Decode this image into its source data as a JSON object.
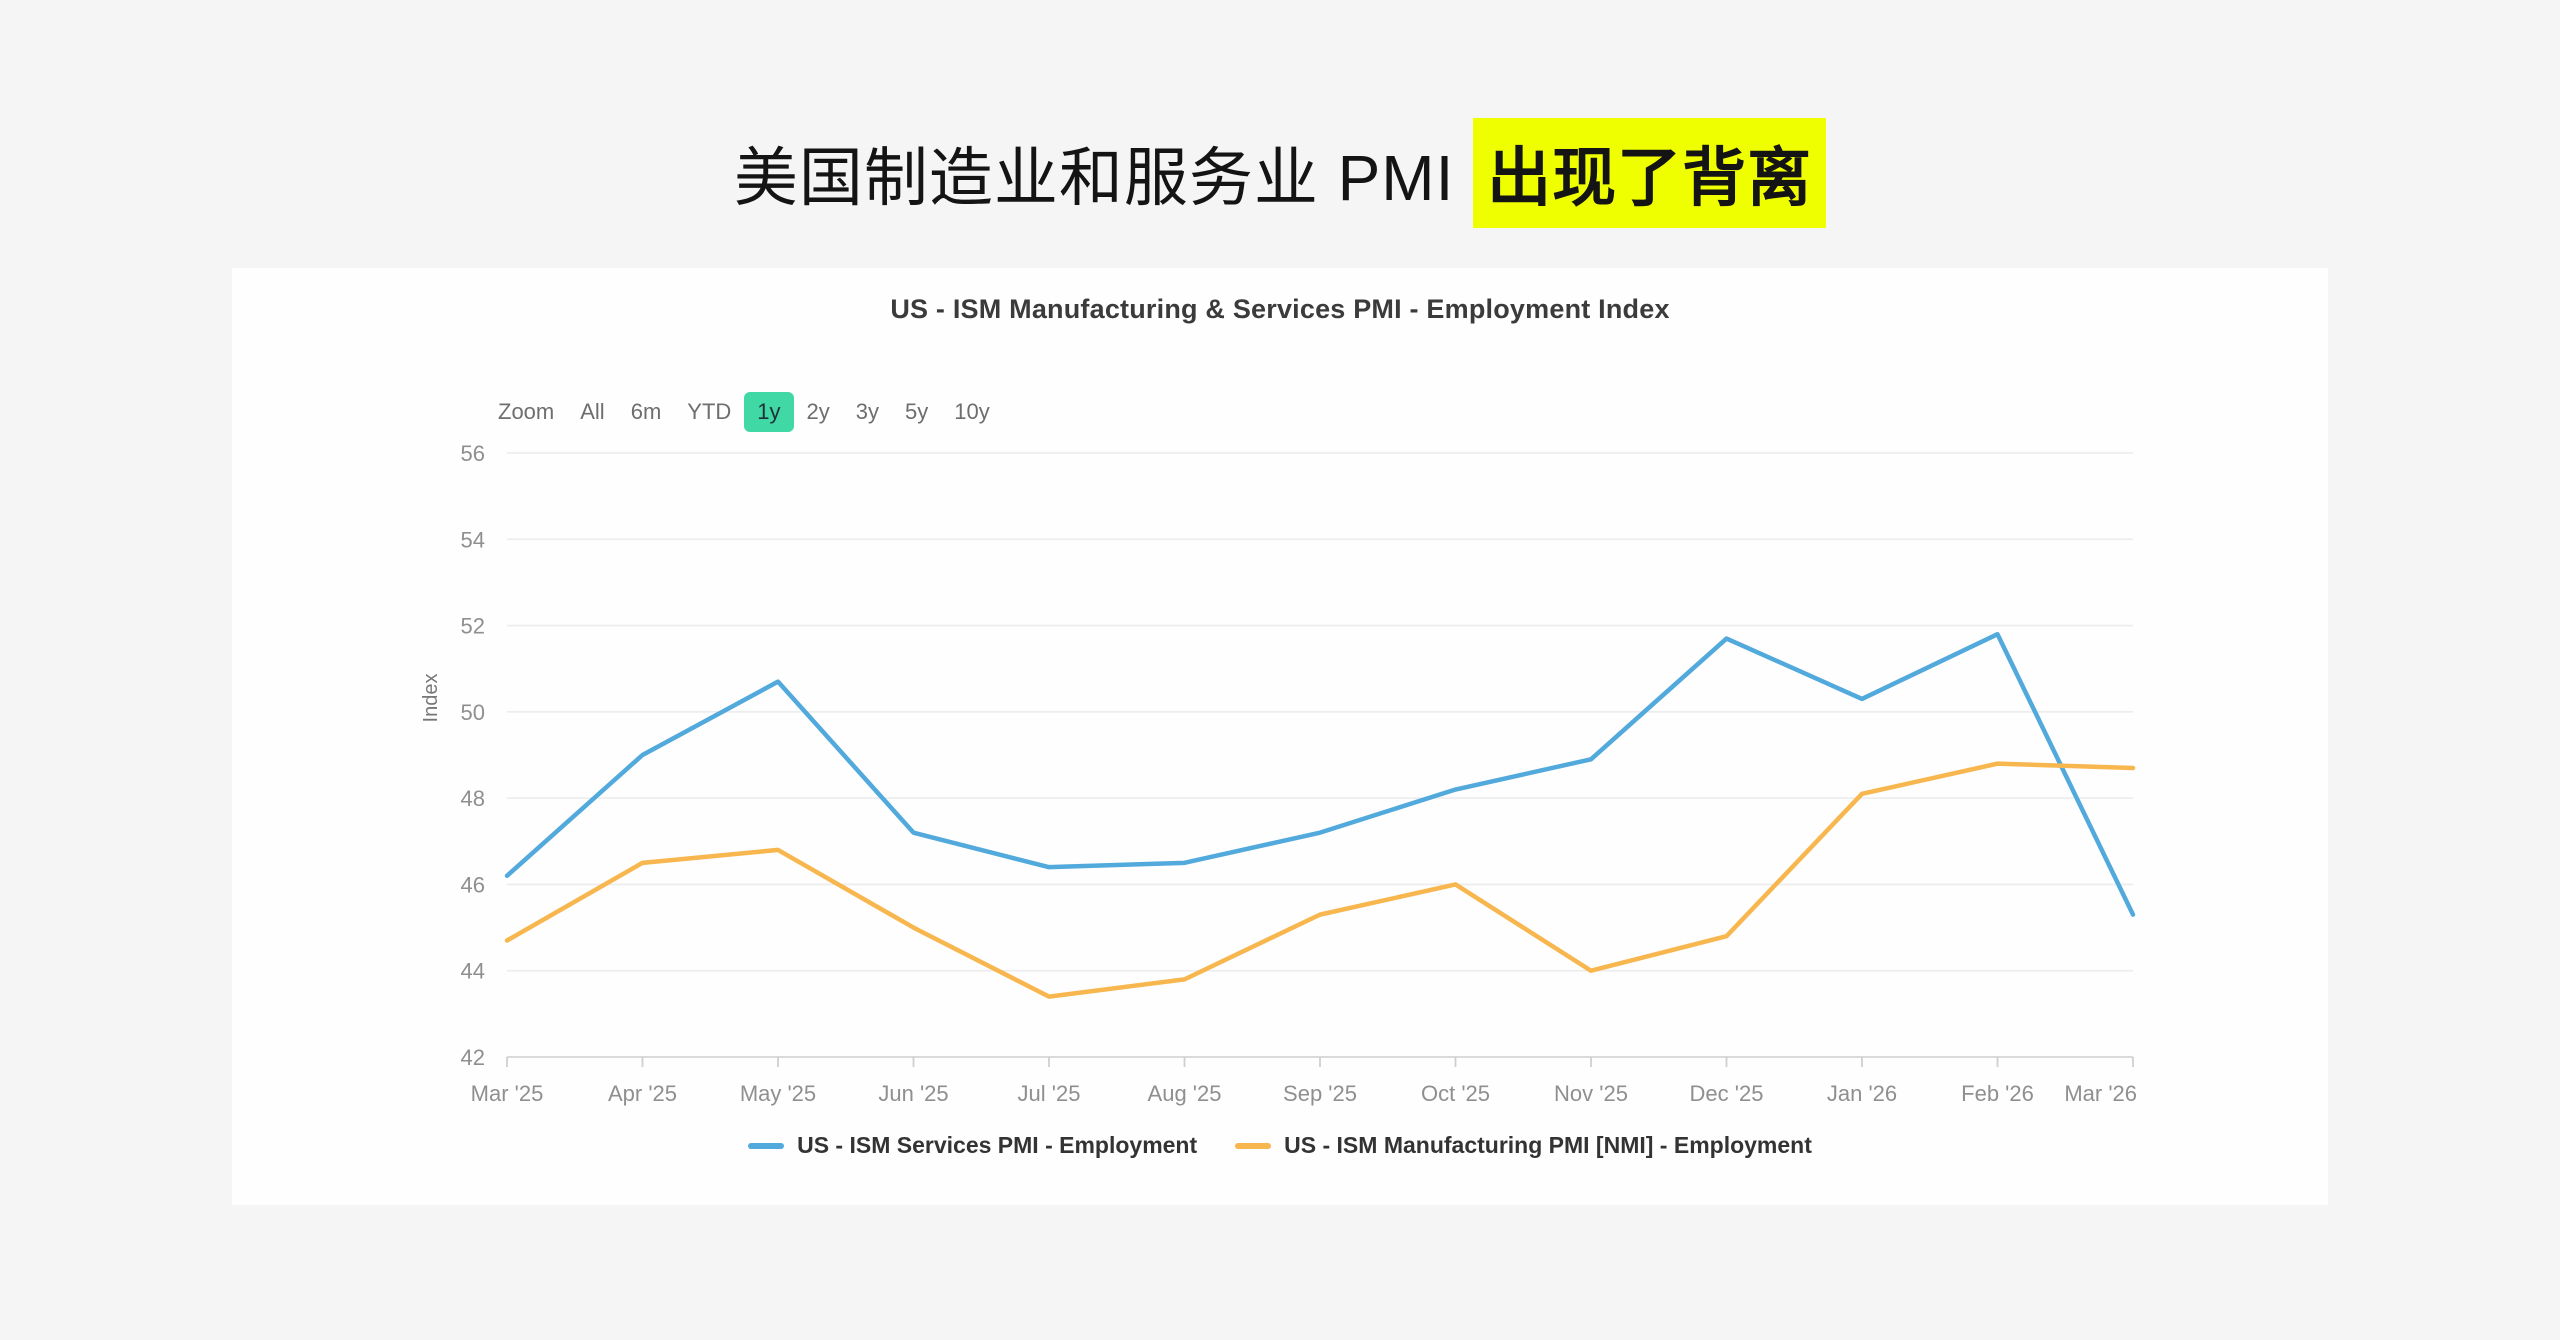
{
  "headline": {
    "plain": "美国制造业和服务业 PMI ",
    "highlight": "出现了背离",
    "highlight_color": "#F0FF00"
  },
  "range_selector": {
    "label": "Zoom",
    "options": [
      "All",
      "6m",
      "YTD",
      "1y",
      "2y",
      "3y",
      "5y",
      "10y"
    ],
    "selected": "1y",
    "selected_color": "#40D9A6"
  },
  "chart_data": {
    "type": "line",
    "title": "US - ISM Manufacturing & Services PMI - Employment Index",
    "ylabel": "Index",
    "ylim": [
      42,
      56
    ],
    "y_tick_step": 2,
    "grid": true,
    "legend_position": "bottom",
    "x": [
      "Mar '25",
      "Apr '25",
      "May '25",
      "Jun '25",
      "Jul '25",
      "Aug '25",
      "Sep '25",
      "Oct '25",
      "Nov '25",
      "Dec '25",
      "Jan '26",
      "Feb '26",
      "Mar '26"
    ],
    "series": [
      {
        "name": "US - ISM Services PMI - Employment",
        "color": "#52A9DC",
        "values": [
          46.2,
          49.0,
          50.7,
          47.2,
          46.4,
          46.5,
          47.2,
          48.2,
          48.9,
          51.7,
          50.3,
          51.8,
          45.3
        ]
      },
      {
        "name": "US - ISM Manufacturing PMI [NMI] - Employment",
        "color": "#F7B64E",
        "values": [
          44.7,
          46.5,
          46.8,
          45.0,
          43.4,
          43.8,
          45.3,
          46.0,
          44.0,
          44.8,
          48.1,
          48.8,
          48.7
        ]
      }
    ],
    "axis_colors": {
      "grid": "#ededed",
      "axis_line": "#d6d6d6",
      "tick": "#cfcfcf",
      "tick_label": "#8f8f8f",
      "axis_title": "#777777"
    }
  }
}
